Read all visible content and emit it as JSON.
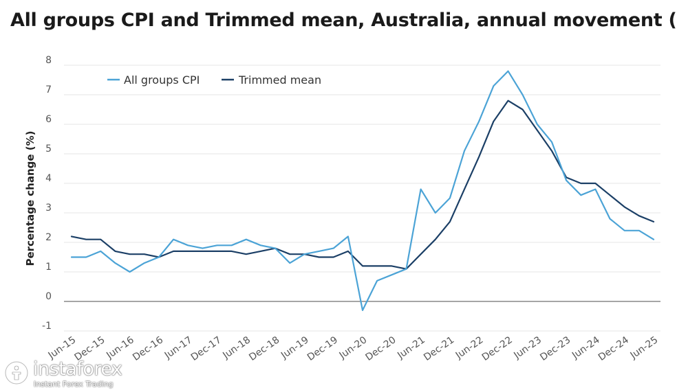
{
  "chart_data": {
    "type": "line",
    "title": "All groups CPI and Trimmed mean, Australia, annual movement (%)",
    "ylabel": "Percentage change (%)",
    "xlabel": "",
    "ylim": [
      -1,
      8
    ],
    "yticks": [
      -1,
      0,
      1,
      2,
      3,
      4,
      5,
      6,
      7,
      8
    ],
    "grid": true,
    "legend": "top-left",
    "x": [
      "Jun-15",
      "Sep-15",
      "Dec-15",
      "Mar-16",
      "Jun-16",
      "Sep-16",
      "Dec-16",
      "Mar-17",
      "Jun-17",
      "Sep-17",
      "Dec-17",
      "Mar-18",
      "Jun-18",
      "Sep-18",
      "Dec-18",
      "Mar-19",
      "Jun-19",
      "Sep-19",
      "Dec-19",
      "Mar-20",
      "Jun-20",
      "Sep-20",
      "Dec-20",
      "Mar-21",
      "Jun-21",
      "Sep-21",
      "Dec-21",
      "Mar-22",
      "Jun-22",
      "Sep-22",
      "Dec-22",
      "Mar-23",
      "Jun-23",
      "Sep-23",
      "Dec-23",
      "Mar-24",
      "Jun-24",
      "Sep-24",
      "Dec-24",
      "Mar-25",
      "Jun-25"
    ],
    "xtick_labels": [
      "Jun-15",
      "Dec-15",
      "Jun-16",
      "Dec-16",
      "Jun-17",
      "Dec-17",
      "Jun-18",
      "Dec-18",
      "Jun-19",
      "Dec-19",
      "Jun-20",
      "Dec-20",
      "Jun-21",
      "Dec-21",
      "Jun-22",
      "Dec-22",
      "Jun-23",
      "Dec-23",
      "Jun-24",
      "Dec-24",
      "Jun-25"
    ],
    "series": [
      {
        "name": "All groups CPI",
        "color": "#4ba3d6",
        "values": [
          1.5,
          1.5,
          1.7,
          1.3,
          1.0,
          1.3,
          1.5,
          2.1,
          1.9,
          1.8,
          1.9,
          1.9,
          2.1,
          1.9,
          1.8,
          1.3,
          1.6,
          1.7,
          1.8,
          2.2,
          -0.3,
          0.7,
          0.9,
          1.1,
          3.8,
          3.0,
          3.5,
          5.1,
          6.1,
          7.3,
          7.8,
          7.0,
          6.0,
          5.4,
          4.1,
          3.6,
          3.8,
          2.8,
          2.4,
          2.4,
          2.1
        ]
      },
      {
        "name": "Trimmed mean",
        "color": "#1b3f66",
        "values": [
          2.2,
          2.1,
          2.1,
          1.7,
          1.6,
          1.6,
          1.5,
          1.7,
          1.7,
          1.7,
          1.7,
          1.7,
          1.6,
          1.7,
          1.8,
          1.6,
          1.6,
          1.5,
          1.5,
          1.7,
          1.2,
          1.2,
          1.2,
          1.1,
          1.6,
          2.1,
          2.7,
          3.8,
          4.9,
          6.1,
          6.8,
          6.5,
          5.8,
          5.1,
          4.2,
          4.0,
          4.0,
          3.6,
          3.2,
          2.9,
          2.7
        ]
      }
    ]
  },
  "watermark": {
    "name": "instaforex",
    "tagline": "Instant Forex Trading"
  }
}
